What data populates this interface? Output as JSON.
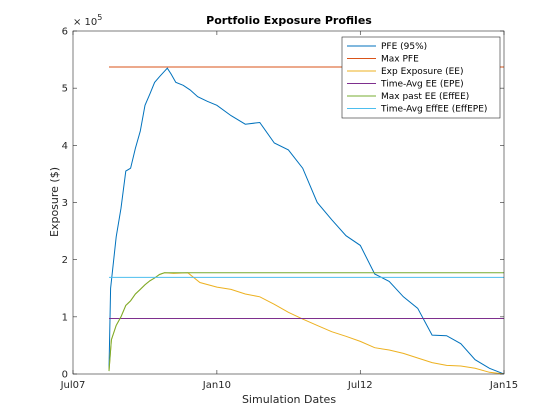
{
  "chart_data": {
    "type": "line",
    "title": "Portfolio Exposure Profiles",
    "xlabel": "Simulation Dates",
    "ylabel": "Exposure ($)",
    "y_exponent_label": "× 10^5",
    "y_exponent_base": "× 10",
    "y_exponent_power": "5",
    "xlim": [
      "2007-07-01",
      "2015-01-01"
    ],
    "ylim": [
      0,
      600000
    ],
    "x_ticks": [
      {
        "date": "2007-07-01",
        "label": "Jul07"
      },
      {
        "date": "2010-01-01",
        "label": "Jan10"
      },
      {
        "date": "2012-07-01",
        "label": "Jul12"
      },
      {
        "date": "2015-01-01",
        "label": "Jan15"
      }
    ],
    "y_ticks": [
      {
        "value": 0,
        "label": "0"
      },
      {
        "value": 100000,
        "label": "1"
      },
      {
        "value": 200000,
        "label": "2"
      },
      {
        "value": 300000,
        "label": "3"
      },
      {
        "value": 400000,
        "label": "4"
      },
      {
        "value": 500000,
        "label": "5"
      },
      {
        "value": 600000,
        "label": "6"
      }
    ],
    "legend_position": "top-right",
    "grid": false,
    "series": [
      {
        "name": "PFE (95%)",
        "color": "#0072BD",
        "points": [
          [
            "2008-02-15",
            8000
          ],
          [
            "2008-02-25",
            150000
          ],
          [
            "2008-04-01",
            240000
          ],
          [
            "2008-05-01",
            290000
          ],
          [
            "2008-06-01",
            355000
          ],
          [
            "2008-07-01",
            360000
          ],
          [
            "2008-08-01",
            395000
          ],
          [
            "2008-09-01",
            425000
          ],
          [
            "2008-10-01",
            470000
          ],
          [
            "2008-11-01",
            490000
          ],
          [
            "2008-12-01",
            510000
          ],
          [
            "2009-01-01",
            520000
          ],
          [
            "2009-02-20",
            535000
          ],
          [
            "2009-03-15",
            525000
          ],
          [
            "2009-04-15",
            510000
          ],
          [
            "2009-06-01",
            505000
          ],
          [
            "2009-07-15",
            497000
          ],
          [
            "2009-09-01",
            485000
          ],
          [
            "2009-11-01",
            477000
          ],
          [
            "2010-01-01",
            470000
          ],
          [
            "2010-04-01",
            452000
          ],
          [
            "2010-07-01",
            437000
          ],
          [
            "2010-10-01",
            440000
          ],
          [
            "2011-01-01",
            404000
          ],
          [
            "2011-04-01",
            392000
          ],
          [
            "2011-07-01",
            360000
          ],
          [
            "2011-10-01",
            300000
          ],
          [
            "2012-01-01",
            270000
          ],
          [
            "2012-04-01",
            242000
          ],
          [
            "2012-07-01",
            225000
          ],
          [
            "2012-10-01",
            175000
          ],
          [
            "2013-01-01",
            162000
          ],
          [
            "2013-04-01",
            135000
          ],
          [
            "2013-07-01",
            115000
          ],
          [
            "2013-10-01",
            68000
          ],
          [
            "2014-01-01",
            67000
          ],
          [
            "2014-04-01",
            53000
          ],
          [
            "2014-07-01",
            25000
          ],
          [
            "2014-10-01",
            10000
          ],
          [
            "2015-01-01",
            0
          ]
        ]
      },
      {
        "name": "Max PFE",
        "color": "#D95319",
        "points": [
          [
            "2008-02-15",
            537000
          ],
          [
            "2015-01-01",
            537000
          ]
        ]
      },
      {
        "name": "Exp Exposure (EE)",
        "color": "#EDB120",
        "points": [
          [
            "2008-02-15",
            5000
          ],
          [
            "2008-03-01",
            60000
          ],
          [
            "2008-04-01",
            85000
          ],
          [
            "2008-05-01",
            100000
          ],
          [
            "2008-06-01",
            120000
          ],
          [
            "2008-07-01",
            128000
          ],
          [
            "2008-08-01",
            140000
          ],
          [
            "2008-09-01",
            148000
          ],
          [
            "2008-10-01",
            156000
          ],
          [
            "2008-11-01",
            163000
          ],
          [
            "2008-12-01",
            168000
          ],
          [
            "2009-01-01",
            174000
          ],
          [
            "2009-02-01",
            177000
          ],
          [
            "2009-04-01",
            176000
          ],
          [
            "2009-07-01",
            177000
          ],
          [
            "2009-09-15",
            160000
          ],
          [
            "2010-01-01",
            152000
          ],
          [
            "2010-04-01",
            148000
          ],
          [
            "2010-07-01",
            140000
          ],
          [
            "2010-10-01",
            135000
          ],
          [
            "2011-01-01",
            122000
          ],
          [
            "2011-04-01",
            108000
          ],
          [
            "2011-07-01",
            96000
          ],
          [
            "2011-10-01",
            85000
          ],
          [
            "2012-01-01",
            74000
          ],
          [
            "2012-04-01",
            66000
          ],
          [
            "2012-07-01",
            57000
          ],
          [
            "2012-10-01",
            46000
          ],
          [
            "2013-01-01",
            42000
          ],
          [
            "2013-04-01",
            36000
          ],
          [
            "2013-07-01",
            28000
          ],
          [
            "2013-10-01",
            20000
          ],
          [
            "2014-01-01",
            15000
          ],
          [
            "2014-04-01",
            14000
          ],
          [
            "2014-07-01",
            10000
          ],
          [
            "2014-10-01",
            3000
          ],
          [
            "2015-01-01",
            0
          ]
        ]
      },
      {
        "name": "Time-Avg EE (EPE)",
        "color": "#7E2F8E",
        "points": [
          [
            "2008-02-15",
            97000
          ],
          [
            "2015-01-01",
            97000
          ]
        ]
      },
      {
        "name": "Max past EE (EffEE)",
        "color": "#77AC30",
        "points": [
          [
            "2008-02-15",
            5000
          ],
          [
            "2008-03-01",
            60000
          ],
          [
            "2008-04-01",
            85000
          ],
          [
            "2008-05-01",
            100000
          ],
          [
            "2008-06-01",
            120000
          ],
          [
            "2008-07-01",
            128000
          ],
          [
            "2008-08-01",
            140000
          ],
          [
            "2008-09-01",
            148000
          ],
          [
            "2008-10-01",
            156000
          ],
          [
            "2008-11-01",
            163000
          ],
          [
            "2008-12-01",
            168000
          ],
          [
            "2009-01-01",
            174000
          ],
          [
            "2009-02-01",
            177000
          ],
          [
            "2015-01-01",
            177000
          ]
        ]
      },
      {
        "name": "Time-Avg EffEE (EffEPE)",
        "color": "#4DBEEE",
        "points": [
          [
            "2008-02-15",
            169000
          ],
          [
            "2015-01-01",
            169000
          ]
        ]
      }
    ]
  }
}
